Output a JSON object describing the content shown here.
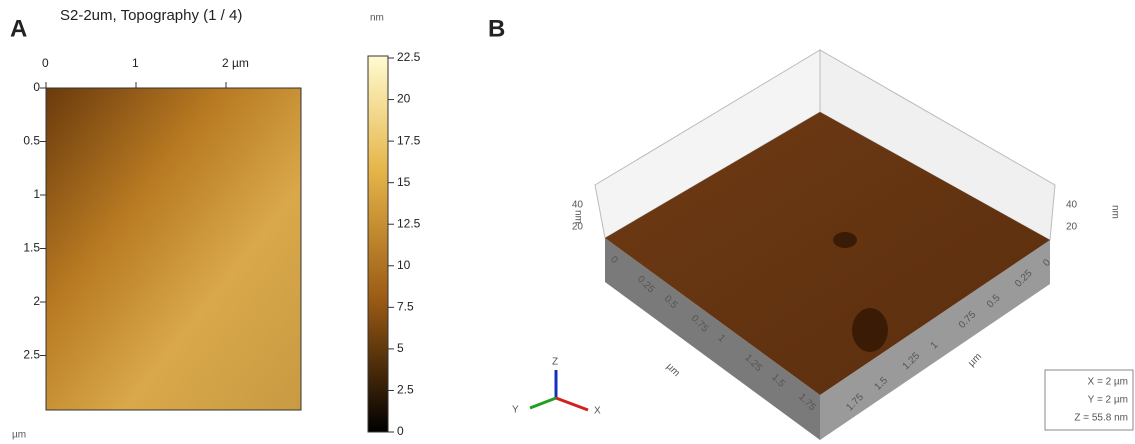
{
  "panel_a": {
    "label": "A",
    "title": "S2-2um, Topography (1 / 4)",
    "x_ticks": [
      "0",
      "1",
      "2 µm"
    ],
    "y_ticks": [
      "0",
      "0.5",
      "1",
      "1.5",
      "2",
      "2.5"
    ],
    "y_unit": "µm",
    "colorbar_unit": "nm",
    "colorbar_ticks": [
      "22.5",
      "20",
      "17.5",
      "15",
      "12.5",
      "10",
      "7.5",
      "5",
      "2.5",
      "0"
    ]
  },
  "panel_b": {
    "label": "B",
    "z_unit": "nm",
    "z_ticks_left": [
      "40",
      "20"
    ],
    "z_ticks_right": [
      "40",
      "20"
    ],
    "left_axis_ticks": [
      "0",
      "0.25",
      "0.5",
      "0.75",
      "1",
      "1.25",
      "1.5",
      "1.75"
    ],
    "right_axis_ticks": [
      "1.75",
      "1.5",
      "1.25",
      "1",
      "0.75",
      "0.5",
      "0.25",
      "0"
    ],
    "axis_unit": "µm",
    "triad": [
      "Z",
      "Y",
      "X"
    ],
    "info": [
      "X = 2 µm",
      "Y = 2 µm",
      "Z = 55.8 nm"
    ]
  }
}
